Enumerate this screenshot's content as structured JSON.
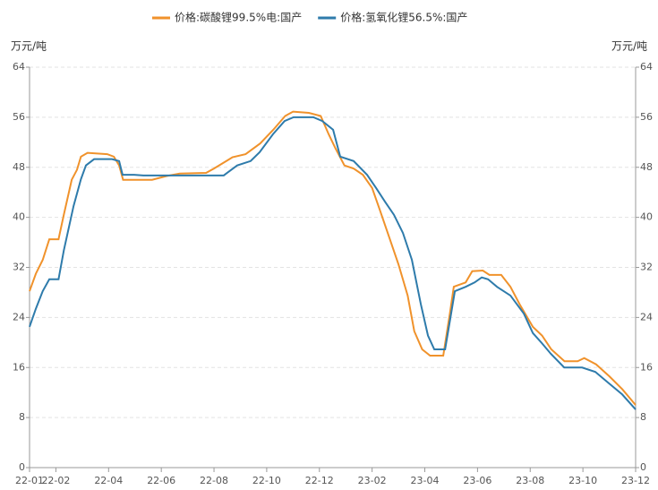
{
  "chart_data": {
    "type": "line",
    "y_label": "万元/吨",
    "y2_label": "万元/吨",
    "ylim": [
      0,
      64
    ],
    "yticks": [
      0,
      8,
      16,
      24,
      32,
      40,
      48,
      56,
      64
    ],
    "y2lim": [
      0,
      64
    ],
    "y2ticks": [
      0,
      8,
      16,
      24,
      32,
      40,
      48,
      56,
      64
    ],
    "xlim": [
      0,
      23
    ],
    "xticks": [
      {
        "value": 0,
        "label": "22-01"
      },
      {
        "value": 1,
        "label": "22-02"
      },
      {
        "value": 3,
        "label": "22-04"
      },
      {
        "value": 5,
        "label": "22-06"
      },
      {
        "value": 7,
        "label": "22-08"
      },
      {
        "value": 9,
        "label": "22-10"
      },
      {
        "value": 11,
        "label": "22-12"
      },
      {
        "value": 13,
        "label": "23-02"
      },
      {
        "value": 15,
        "label": "23-04"
      },
      {
        "value": 17,
        "label": "23-06"
      },
      {
        "value": 19,
        "label": "23-08"
      },
      {
        "value": 21,
        "label": "23-10"
      },
      {
        "value": 23,
        "label": "23-12"
      }
    ],
    "grid": true,
    "legend": "top",
    "series": [
      {
        "name": "价格:碳酸锂99.5%电:国产",
        "color": "#f0922b",
        "x": [
          0,
          0.24,
          0.5,
          0.75,
          1.1,
          1.3,
          1.6,
          1.8,
          1.95,
          2.2,
          2.95,
          3.2,
          3.4,
          3.55,
          4,
          4.65,
          5.2,
          5.7,
          6.7,
          7.0,
          7.7,
          8.2,
          8.75,
          9.25,
          9.7,
          10.0,
          10.6,
          11.05,
          11.35,
          11.6,
          11.95,
          12.3,
          12.65,
          13,
          13.3,
          13.65,
          14,
          14.35,
          14.6,
          14.9,
          15.2,
          15.7,
          15.95,
          16.1,
          16.55,
          16.8,
          17.2,
          17.45,
          17.9,
          18.25,
          18.6,
          19.1,
          19.45,
          19.8,
          20.3,
          20.8,
          21.05,
          21.5,
          22,
          22.5,
          23
        ],
        "values": [
          28.2,
          31,
          33.2,
          36.5,
          36.5,
          40.4,
          46,
          47.6,
          49.7,
          50.3,
          50.1,
          49.7,
          48.3,
          46,
          46,
          46,
          46.6,
          47,
          47.1,
          47.8,
          49.6,
          50.1,
          51.8,
          54,
          56.2,
          56.9,
          56.7,
          56.2,
          53.3,
          51.1,
          48.3,
          47.8,
          46.8,
          44.7,
          41.1,
          36.8,
          32.5,
          27.5,
          21.8,
          18.9,
          17.9,
          17.9,
          24.6,
          28.9,
          29.6,
          31.4,
          31.5,
          30.8,
          30.8,
          28.9,
          26.1,
          22.5,
          21.1,
          18.9,
          17,
          17,
          17.5,
          16.5,
          14.6,
          12.5,
          10
        ]
      },
      {
        "name": "价格:氢氧化锂56.5%:国产",
        "color": "#2e7bab",
        "axis": "y2",
        "x": [
          0,
          0.24,
          0.5,
          0.75,
          1.1,
          1.3,
          1.67,
          1.95,
          2.14,
          2.45,
          3.13,
          3.4,
          3.53,
          3.97,
          4.32,
          7.37,
          7.88,
          8.39,
          8.73,
          9.24,
          9.68,
          10.02,
          10.77,
          11.11,
          11.52,
          11.79,
          12.3,
          12.81,
          13.15,
          13.49,
          13.83,
          14.17,
          14.51,
          14.85,
          15.12,
          15.36,
          15.77,
          15.97,
          16.14,
          16.55,
          16.89,
          17.16,
          17.4,
          17.74,
          18.25,
          18.76,
          19.1,
          19.44,
          19.78,
          20.29,
          20.97,
          21.47,
          21.98,
          22.49,
          23
        ],
        "values": [
          22.5,
          25.4,
          28.2,
          30.1,
          30.1,
          34.7,
          41.8,
          46.1,
          48.3,
          49.3,
          49.3,
          49,
          46.8,
          46.8,
          46.7,
          46.7,
          48.3,
          49,
          50.4,
          53.3,
          55.4,
          56,
          56,
          55.4,
          54,
          49.7,
          49,
          46.8,
          44.7,
          42.5,
          40.4,
          37.5,
          33.2,
          26.1,
          21.1,
          18.9,
          18.9,
          23.9,
          28.2,
          28.9,
          29.6,
          30.4,
          30.1,
          28.9,
          27.5,
          24.6,
          21.5,
          19.9,
          18.2,
          16,
          16,
          15.3,
          13.5,
          11.7,
          9.3
        ]
      }
    ]
  }
}
